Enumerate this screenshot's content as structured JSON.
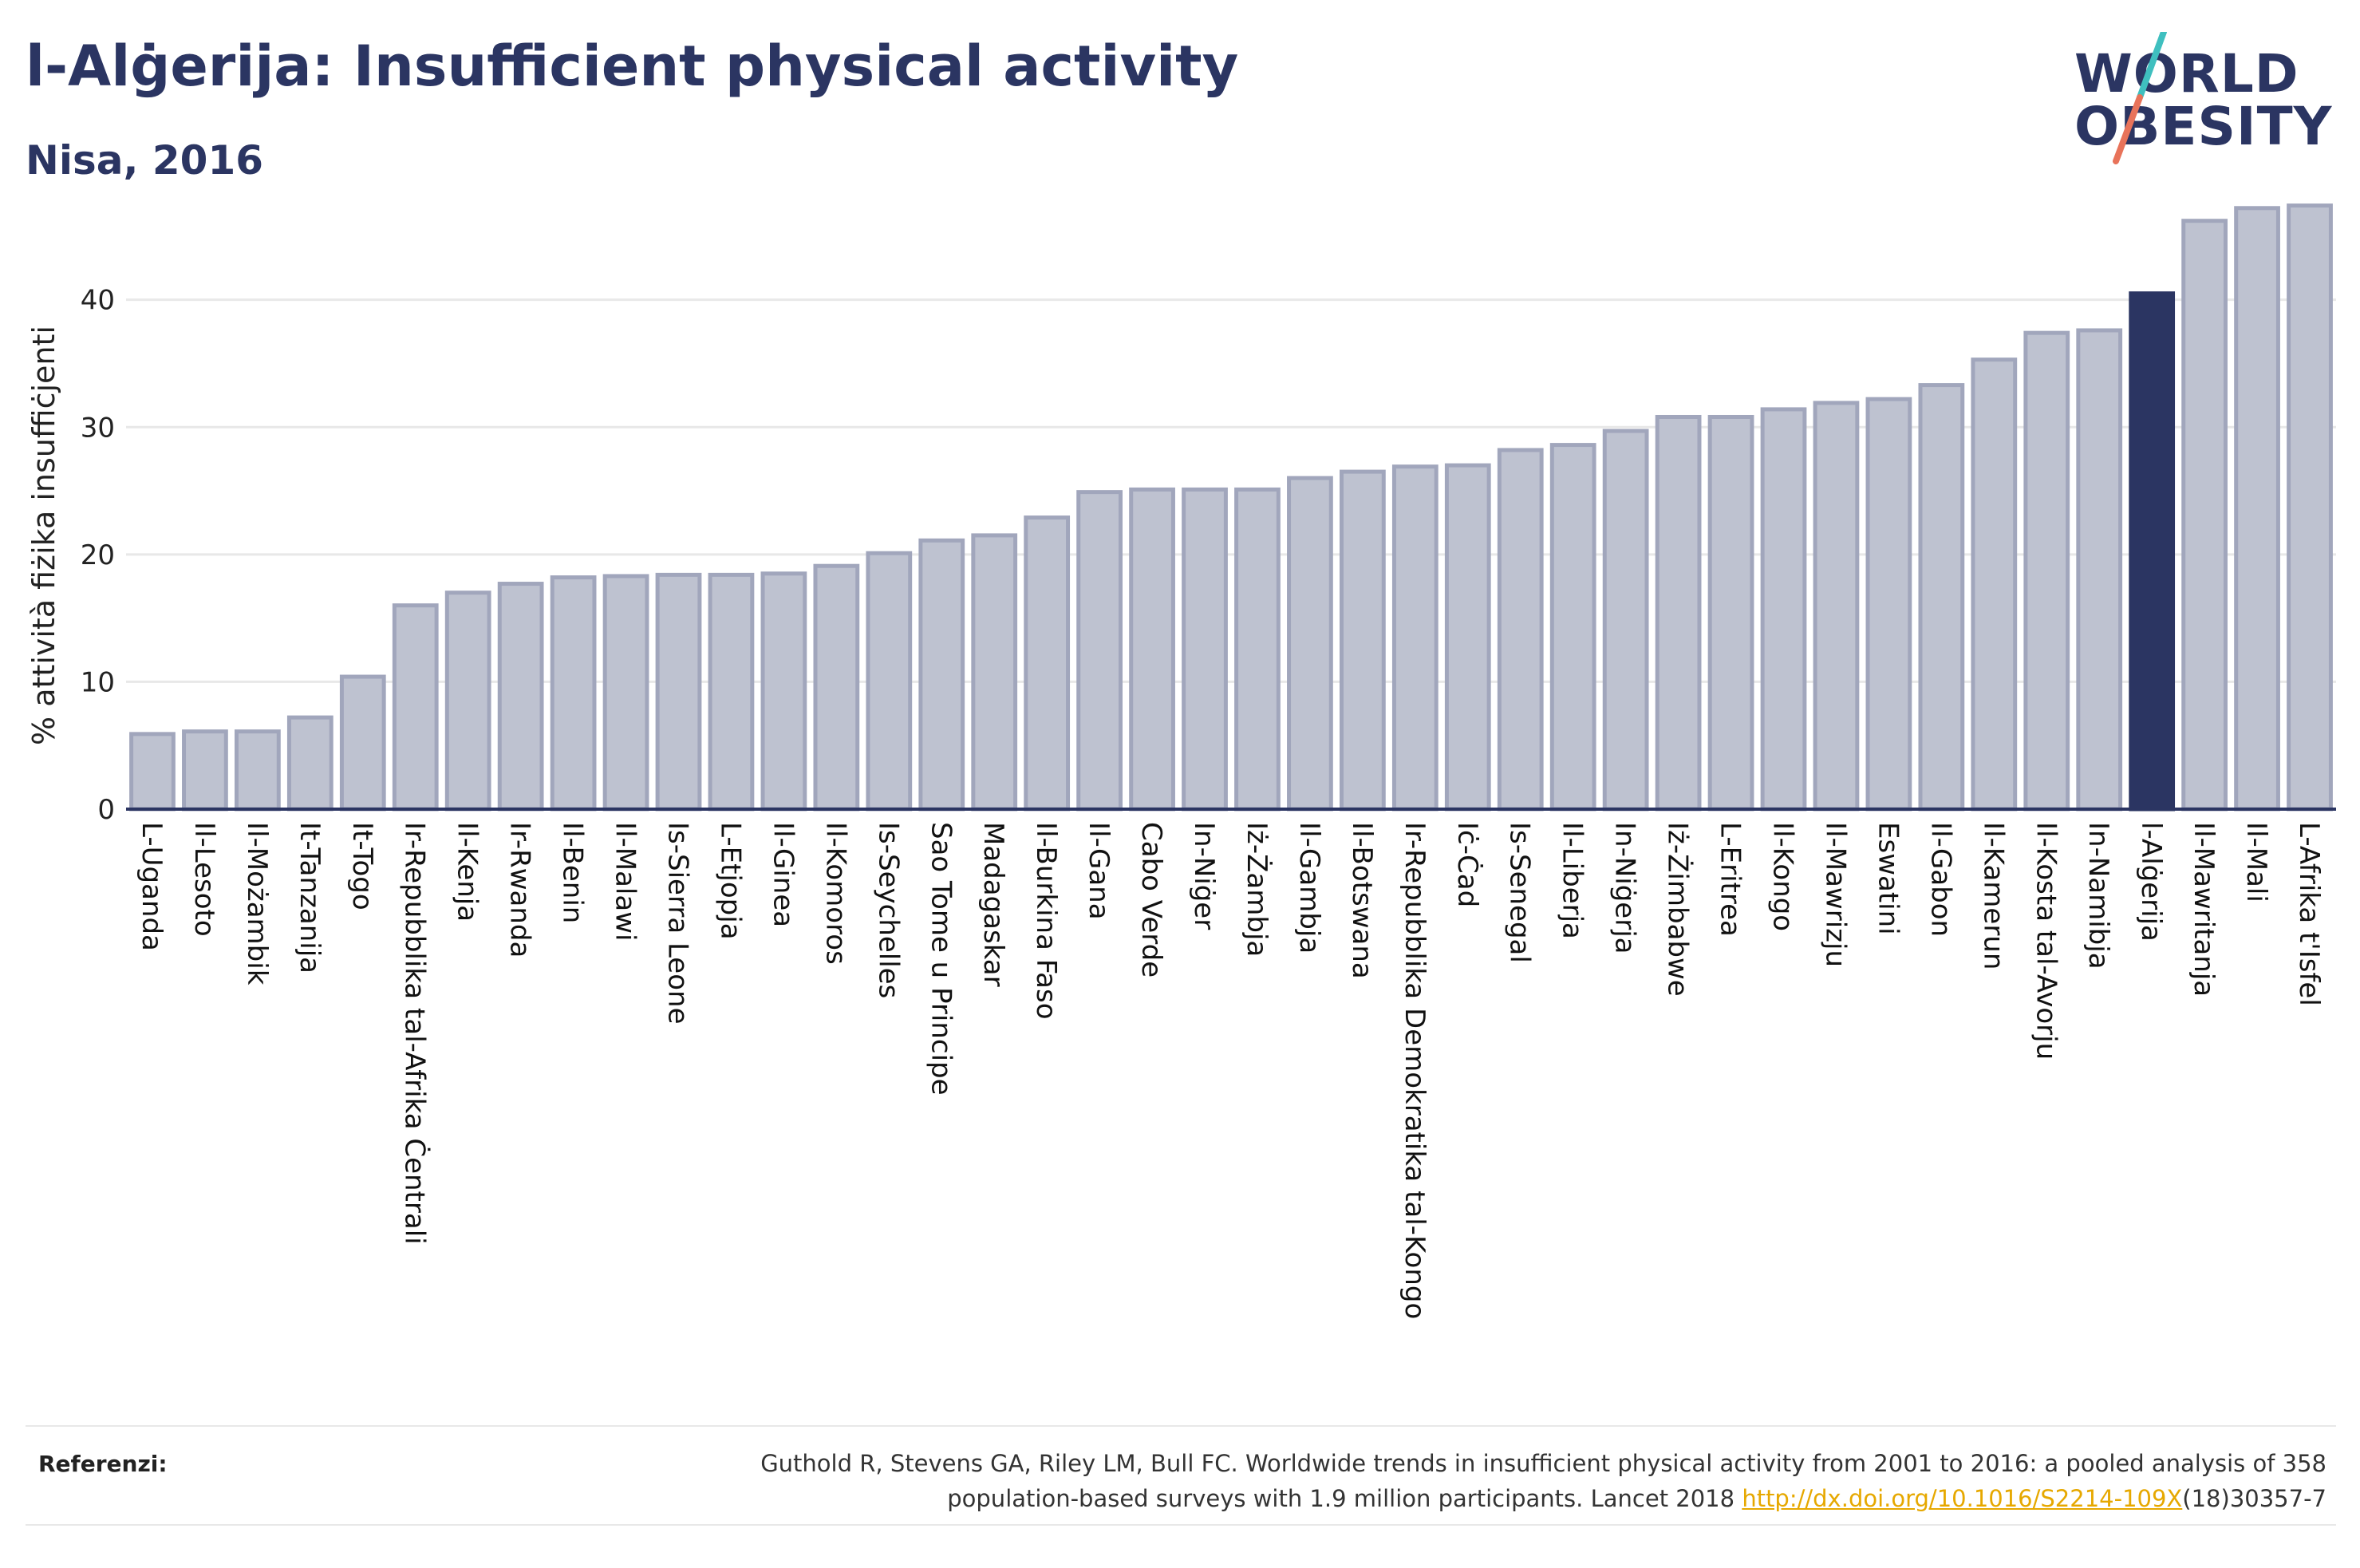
{
  "header": {
    "title": "l-Alġerija: Insufficient physical activity",
    "subtitle": "Nisa, 2016"
  },
  "logo": {
    "line1": "WORLD",
    "line2": "OBESITY"
  },
  "colors": {
    "bar": "#bec2d0",
    "bar_stroke": "#a1a6bc",
    "highlight": "#2b3562",
    "grid": "#e8e8e8",
    "logo_slash_teal": "#3fbfbf",
    "logo_slash_red": "#e8735a",
    "link": "#e6a800"
  },
  "chart_data": {
    "type": "bar",
    "title": "",
    "xlabel": "",
    "ylabel": "% attività fiżika insuffiċjenti",
    "ylim": [
      0,
      48
    ],
    "yticks": [
      0,
      10,
      20,
      30,
      40
    ],
    "grid": true,
    "highlight_category": "l-Alġerija",
    "categories": [
      "L-Uganda",
      "Il-Lesoto",
      "Il-Możambik",
      "It-Tanzanija",
      "It-Togo",
      "Ir-Repubblika tal-Afrika Ċentrali",
      "Il-Kenja",
      "Ir-Rwanda",
      "Il-Benin",
      "Il-Malawi",
      "Is-Sierra Leone",
      "L-Etjopja",
      "Il-Ginea",
      "Il-Komoros",
      "Is-Seychelles",
      "Sao Tome u Principe",
      "Madagaskar",
      "Il-Burkina Faso",
      "Il-Gana",
      "Cabo Verde",
      "In-Niġer",
      "Iż-Żambja",
      "Il-Gambja",
      "Il-Botswana",
      "Ir-Repubblika Demokratika tal-Kongo",
      "Iċ-Ċad",
      "Is-Senegal",
      "Il-Liberja",
      "In-Niġerja",
      "Iż-Żimbabwe",
      "L-Eritrea",
      "Il-Kongo",
      "Il-Mawrizju",
      "Eswatini",
      "Il-Gabon",
      "Il-Kamerun",
      "Il-Kosta tal-Avorju",
      "In-Namibja",
      "l-Alġerija",
      "Il-Mawritanja",
      "Il-Mali",
      "L-Afrika t'Isfel"
    ],
    "values": [
      5.9,
      6.1,
      6.1,
      7.2,
      10.4,
      16.0,
      17.0,
      17.7,
      18.2,
      18.3,
      18.4,
      18.4,
      18.5,
      19.1,
      20.1,
      21.1,
      21.5,
      22.9,
      24.9,
      25.1,
      25.1,
      25.1,
      26.0,
      26.5,
      26.9,
      27.0,
      28.2,
      28.6,
      29.7,
      30.8,
      30.8,
      31.4,
      31.9,
      32.2,
      33.3,
      35.3,
      37.4,
      37.6,
      40.5,
      46.2,
      47.2,
      47.4
    ]
  },
  "references": {
    "label": "Referenzi:",
    "text_line1": "Guthold R, Stevens GA, Riley LM, Bull FC. Worldwide trends in insufficient physical activity from 2001 to 2016: a pooled analysis of 358",
    "text_line2_before": "population-based surveys with 1.9 million participants. Lancet 2018 ",
    "link": "http://dx.doi.org/10.1016/S2214-109X",
    "text_line2_after": "(18)30357-7"
  }
}
